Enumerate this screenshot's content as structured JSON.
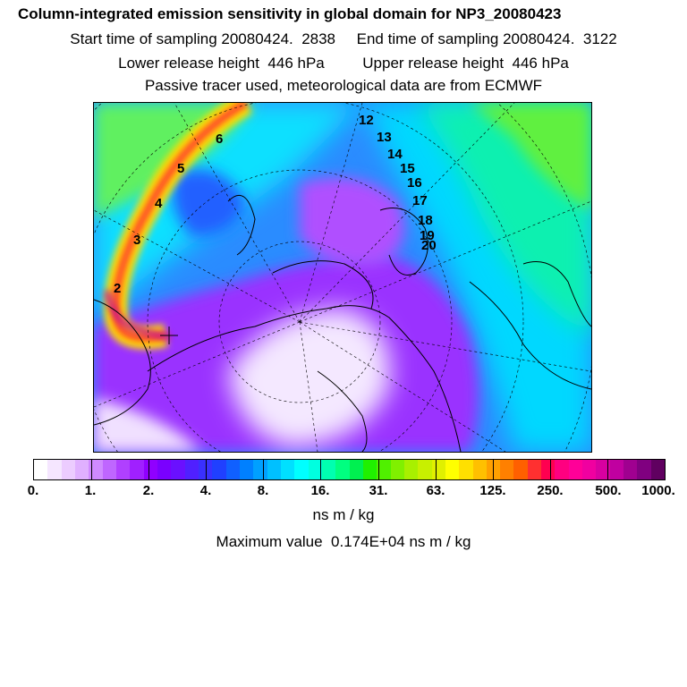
{
  "header": {
    "title": "Column-integrated emission sensitivity in global domain for NP3_20080423",
    "line2": "Start time of sampling 20080424.  2838     End time of sampling 20080424.  3122",
    "line3": "Lower release height  446 hPa         Upper release height  446 hPa",
    "line4": "Passive tracer used, meteorological data are from ECMWF"
  },
  "map": {
    "projection": "polar stereographic, north",
    "trajectory_labels": [
      "2",
      "3",
      "4",
      "5",
      "6",
      "12",
      "13",
      "14",
      "15",
      "16",
      "17",
      "18",
      "19",
      "20"
    ]
  },
  "colorbar": {
    "labels": [
      "0.",
      "1.",
      "2.",
      "4.",
      "8.",
      "16.",
      "31.",
      "63.",
      "125.",
      "250.",
      "500.",
      "1000."
    ],
    "units": "ns m / kg",
    "colors": [
      "#ffffff",
      "#f5e6ff",
      "#ecccff",
      "#e0b0ff",
      "#d08aff",
      "#bf66ff",
      "#b040ff",
      "#a020ff",
      "#9000ff",
      "#7a00ff",
      "#6a10ff",
      "#5020ff",
      "#3a30ff",
      "#2040ff",
      "#1060ff",
      "#0080ff",
      "#00a0ff",
      "#00c0ff",
      "#00e0ff",
      "#00ffff",
      "#00ffe0",
      "#00ffb0",
      "#00ff80",
      "#00f050",
      "#20f000",
      "#50f000",
      "#80f000",
      "#a8f000",
      "#c8f000",
      "#e0f000",
      "#ffff00",
      "#ffe000",
      "#ffc000",
      "#ffa000",
      "#ff8000",
      "#ff6000",
      "#ff3030",
      "#ff0050",
      "#ff0080",
      "#ff0098",
      "#f000a0",
      "#d800a0",
      "#c000a0",
      "#a00090",
      "#800080",
      "#600060"
    ]
  },
  "footer": {
    "max_value": "Maximum value  0.174E+04 ns m / kg"
  }
}
